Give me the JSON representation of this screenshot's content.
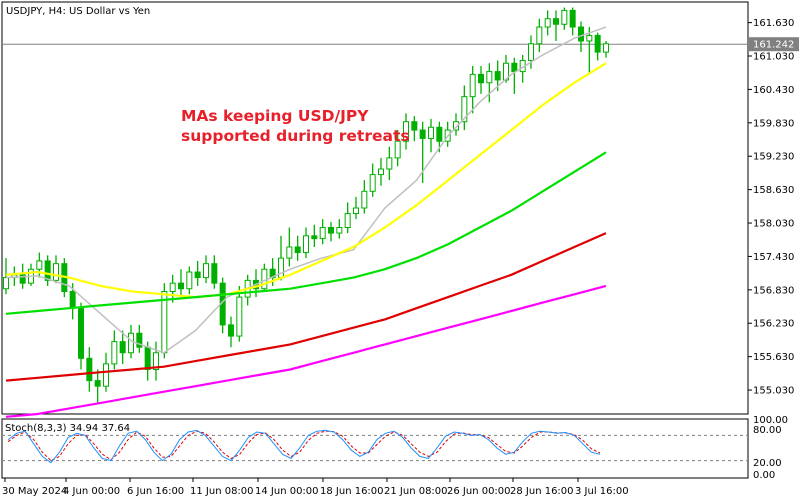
{
  "chart_data": {
    "type": "candlestick",
    "title": "USDJPY, H4:  US Dollar vs Yen",
    "annotation": "MAs keeping USD/JPY\nsupported during retreats",
    "current_price": "161.242",
    "y_range": [
      154.6,
      162.0
    ],
    "y_ticks": [
      "161.630",
      "161.030",
      "160.430",
      "159.830",
      "159.230",
      "158.630",
      "158.030",
      "157.430",
      "156.830",
      "156.230",
      "155.630",
      "155.030"
    ],
    "x_ticks": [
      "30 May 2024",
      "4 Jun 00:00",
      "6 Jun 16:00",
      "11 Jun 08:00",
      "14 Jun 00:00",
      "18 Jun 16:00",
      "21 Jun 08:00",
      "26 Jun 00:00",
      "28 Jun 16:00",
      "3 Jul 16:00"
    ],
    "candles": [
      [
        156.85,
        157.05,
        157.4,
        156.75
      ],
      [
        157.05,
        157.1,
        157.25,
        156.9
      ],
      [
        157.1,
        156.95,
        157.3,
        156.85
      ],
      [
        156.95,
        157.2,
        157.3,
        156.9
      ],
      [
        157.2,
        157.35,
        157.5,
        157.05
      ],
      [
        157.35,
        157.0,
        157.45,
        156.9
      ],
      [
        157.0,
        157.3,
        157.45,
        156.95
      ],
      [
        157.3,
        156.8,
        157.4,
        156.7
      ],
      [
        156.8,
        156.5,
        156.95,
        156.3
      ],
      [
        156.5,
        155.6,
        156.6,
        155.4
      ],
      [
        155.6,
        155.2,
        155.8,
        155.0
      ],
      [
        155.2,
        155.1,
        155.4,
        154.8
      ],
      [
        155.1,
        155.5,
        155.7,
        155.0
      ],
      [
        155.5,
        155.9,
        156.1,
        155.4
      ],
      [
        155.9,
        155.7,
        156.1,
        155.5
      ],
      [
        155.7,
        156.05,
        156.2,
        155.6
      ],
      [
        156.05,
        155.8,
        156.2,
        155.7
      ],
      [
        155.8,
        155.4,
        155.9,
        155.2
      ],
      [
        155.4,
        155.7,
        155.9,
        155.2
      ],
      [
        155.7,
        156.8,
        156.95,
        155.6
      ],
      [
        156.8,
        156.95,
        157.1,
        156.6
      ],
      [
        156.95,
        156.85,
        157.2,
        156.7
      ],
      [
        156.85,
        157.15,
        157.25,
        156.75
      ],
      [
        157.15,
        157.05,
        157.35,
        156.9
      ],
      [
        157.05,
        157.3,
        157.45,
        156.95
      ],
      [
        157.3,
        156.95,
        157.45,
        156.85
      ],
      [
        156.95,
        156.2,
        157.05,
        156.05
      ],
      [
        156.2,
        156.0,
        156.35,
        155.8
      ],
      [
        156.0,
        156.7,
        156.9,
        155.9
      ],
      [
        156.7,
        157.0,
        157.1,
        156.55
      ],
      [
        157.0,
        156.85,
        157.2,
        156.7
      ],
      [
        156.85,
        157.2,
        157.3,
        156.8
      ],
      [
        157.2,
        157.05,
        157.4,
        156.9
      ],
      [
        157.05,
        157.4,
        157.8,
        157.0
      ],
      [
        157.4,
        157.6,
        157.95,
        157.25
      ],
      [
        157.6,
        157.5,
        157.8,
        157.35
      ],
      [
        157.5,
        157.8,
        157.95,
        157.4
      ],
      [
        157.8,
        157.75,
        158.0,
        157.6
      ],
      [
        157.75,
        157.95,
        158.1,
        157.65
      ],
      [
        157.95,
        157.85,
        158.05,
        157.7
      ],
      [
        157.85,
        157.95,
        158.1,
        157.75
      ],
      [
        157.95,
        158.2,
        158.4,
        157.85
      ],
      [
        158.2,
        158.3,
        158.5,
        158.1
      ],
      [
        158.3,
        158.6,
        158.8,
        158.2
      ],
      [
        158.6,
        158.9,
        159.1,
        158.5
      ],
      [
        158.9,
        159.0,
        159.2,
        158.7
      ],
      [
        159.0,
        159.2,
        159.4,
        158.8
      ],
      [
        159.2,
        159.5,
        159.7,
        159.05
      ],
      [
        159.5,
        159.85,
        160.0,
        159.35
      ],
      [
        159.85,
        159.7,
        159.95,
        159.5
      ],
      [
        159.7,
        159.55,
        159.85,
        158.75
      ],
      [
        159.55,
        159.75,
        159.9,
        159.3
      ],
      [
        159.75,
        159.5,
        159.85,
        159.3
      ],
      [
        159.5,
        159.7,
        159.85,
        159.4
      ],
      [
        159.7,
        159.85,
        160.0,
        159.6
      ],
      [
        159.85,
        160.3,
        160.5,
        159.7
      ],
      [
        160.3,
        160.7,
        160.85,
        160.0
      ],
      [
        160.7,
        160.55,
        160.85,
        160.35
      ],
      [
        160.55,
        160.75,
        160.9,
        160.2
      ],
      [
        160.75,
        160.6,
        160.95,
        160.4
      ],
      [
        160.6,
        160.9,
        161.05,
        160.55
      ],
      [
        160.9,
        160.75,
        161.0,
        160.35
      ],
      [
        160.75,
        160.95,
        161.05,
        160.55
      ],
      [
        160.95,
        161.25,
        161.4,
        160.8
      ],
      [
        161.25,
        161.55,
        161.7,
        161.1
      ],
      [
        161.55,
        161.7,
        161.85,
        161.4
      ],
      [
        161.7,
        161.6,
        161.85,
        161.3
      ],
      [
        161.6,
        161.85,
        161.9,
        161.5
      ],
      [
        161.85,
        161.55,
        161.9,
        161.4
      ],
      [
        161.55,
        161.3,
        161.65,
        161.1
      ],
      [
        161.3,
        161.4,
        161.55,
        160.7
      ],
      [
        161.4,
        161.1,
        161.45,
        160.95
      ],
      [
        161.1,
        161.25,
        161.3,
        161.0
      ]
    ],
    "moving_averages": [
      {
        "color": "#c0c0c0",
        "values": [
          157.05,
          157.08,
          156.9,
          156.4,
          155.9,
          155.7,
          156.1,
          156.7,
          156.95,
          157.2,
          157.4,
          157.55,
          158.3,
          158.8,
          159.6,
          160.2,
          160.7,
          161.05,
          161.35,
          161.55
        ]
      },
      {
        "color": "#ffff00",
        "values": [
          157.1,
          157.15,
          157.05,
          156.9,
          156.8,
          156.75,
          156.7,
          156.75,
          156.9,
          157.1,
          157.35,
          157.6,
          157.95,
          158.35,
          158.8,
          159.25,
          159.7,
          160.15,
          160.55,
          160.9
        ]
      },
      {
        "color": "#00e000",
        "values": [
          156.4,
          156.45,
          156.5,
          156.55,
          156.6,
          156.65,
          156.7,
          156.75,
          156.8,
          156.85,
          156.95,
          157.05,
          157.2,
          157.4,
          157.65,
          157.95,
          158.25,
          158.6,
          158.95,
          159.3
        ]
      },
      {
        "color": "#e00000",
        "values": [
          155.2,
          155.25,
          155.3,
          155.35,
          155.4,
          155.45,
          155.55,
          155.65,
          155.75,
          155.85,
          156.0,
          156.15,
          156.3,
          156.5,
          156.7,
          156.9,
          157.1,
          157.35,
          157.6,
          157.85
        ]
      },
      {
        "color": "#ff00ff",
        "values": [
          154.55,
          154.6,
          154.7,
          154.8,
          154.9,
          155.0,
          155.1,
          155.2,
          155.3,
          155.4,
          155.55,
          155.7,
          155.85,
          156.0,
          156.15,
          156.3,
          156.45,
          156.6,
          156.75,
          156.9
        ]
      }
    ],
    "stochastic": {
      "label": "Stoch(8,3,3) 34.94 37.64",
      "levels": [
        "100.00",
        "80.00",
        "20.00",
        "0.00"
      ],
      "k_color": "#1e90ff",
      "d_color": "#e00000",
      "k": [
        70,
        85,
        90,
        60,
        30,
        15,
        40,
        75,
        85,
        80,
        50,
        25,
        20,
        55,
        85,
        90,
        70,
        40,
        20,
        35,
        70,
        88,
        92,
        80,
        55,
        30,
        20,
        45,
        75,
        88,
        85,
        60,
        35,
        25,
        50,
        80,
        90,
        92,
        88,
        70,
        45,
        30,
        40,
        70,
        85,
        90,
        75,
        50,
        30,
        25,
        50,
        78,
        88,
        85,
        80,
        82,
        70,
        50,
        35,
        40,
        65,
        85,
        90,
        88,
        85,
        87,
        80,
        60,
        40,
        35
      ],
      "d": [
        65,
        80,
        88,
        70,
        40,
        20,
        30,
        60,
        80,
        82,
        60,
        35,
        22,
        40,
        70,
        88,
        78,
        50,
        28,
        30,
        55,
        80,
        90,
        85,
        65,
        40,
        25,
        35,
        62,
        82,
        86,
        70,
        45,
        30,
        40,
        68,
        85,
        90,
        89,
        78,
        55,
        38,
        38,
        58,
        78,
        88,
        80,
        60,
        40,
        30,
        40,
        65,
        83,
        86,
        82,
        82,
        75,
        58,
        42,
        38,
        55,
        75,
        88,
        88,
        86,
        86,
        82,
        68,
        48,
        38
      ]
    }
  }
}
